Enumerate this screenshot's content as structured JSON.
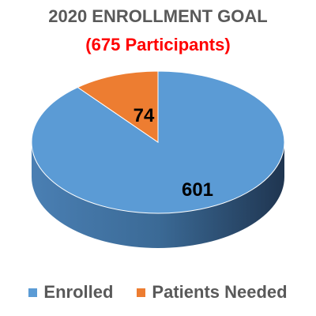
{
  "chart_data": {
    "type": "pie",
    "title": "2020 ENROLLMENT GOAL",
    "subtitle": "(675 Participants)",
    "categories": [
      "Enrolled",
      "Patients Needed"
    ],
    "values": [
      601,
      74
    ],
    "data_labels": [
      "601",
      "74"
    ],
    "legend": "bottom",
    "style": "3d"
  },
  "colors": {
    "enrolled": "#5b9bd5",
    "needed": "#ed7d31",
    "title": "#595959",
    "subtitle": "#ff0000"
  }
}
